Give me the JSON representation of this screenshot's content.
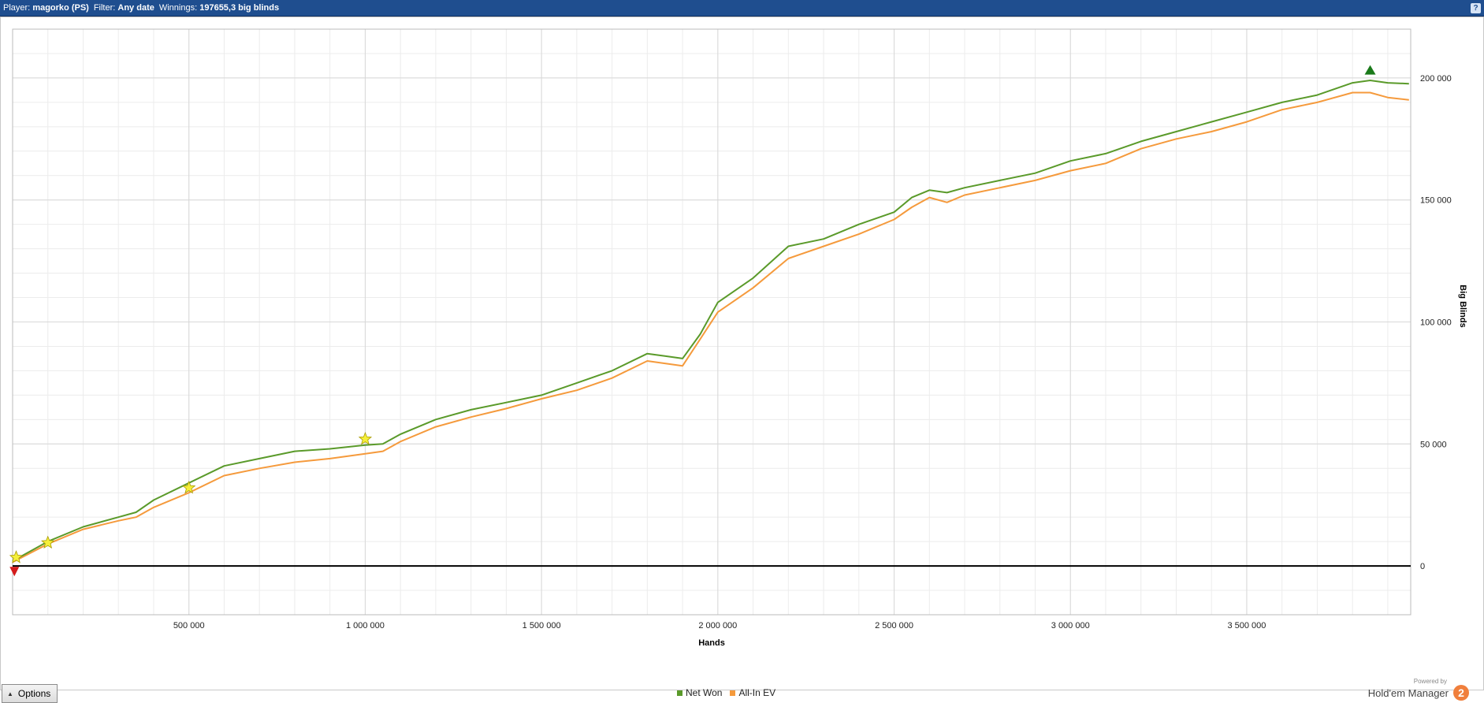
{
  "header": {
    "player_label": "Player:",
    "player_value": "magorko (PS)",
    "filter_label": "Filter:",
    "filter_value": "Any date",
    "winnings_label": "Winnings:",
    "winnings_value": "197655,3 big blinds",
    "help": "?"
  },
  "options_button": {
    "label": "Options",
    "icon": "triangle-up-icon"
  },
  "branding": {
    "powered": "Powered by",
    "name": "Hold'em Manager",
    "logo_text": "2"
  },
  "colors": {
    "net_won": "#5a9a2a",
    "allin_ev": "#f59a3c",
    "zero_line": "#000000",
    "grid": "#d8d8d8"
  },
  "chart_data": {
    "type": "line",
    "xlabel": "Hands",
    "ylabel": "Big Blinds",
    "xlim": [
      0,
      3965000
    ],
    "ylim": [
      -20000,
      220000
    ],
    "x_ticks": [
      500000,
      1000000,
      1500000,
      2000000,
      2500000,
      3000000,
      3500000
    ],
    "x_tick_labels": [
      "500 000",
      "1 000 000",
      "1 500 000",
      "2 000 000",
      "2 500 000",
      "3 000 000",
      "3 500 000"
    ],
    "y_ticks": [
      0,
      50000,
      100000,
      150000,
      200000
    ],
    "y_tick_labels": [
      "0",
      "50 000",
      "100 000",
      "150 000",
      "200 000"
    ],
    "grid": true,
    "legend_position": "bottom-center",
    "series": [
      {
        "name": "Net Won",
        "x": [
          0,
          100000,
          200000,
          300000,
          350000,
          400000,
          500000,
          600000,
          700000,
          800000,
          900000,
          1000000,
          1050000,
          1100000,
          1200000,
          1300000,
          1400000,
          1500000,
          1600000,
          1700000,
          1800000,
          1850000,
          1900000,
          1950000,
          2000000,
          2100000,
          2200000,
          2300000,
          2400000,
          2500000,
          2550000,
          2600000,
          2650000,
          2700000,
          2800000,
          2900000,
          3000000,
          3100000,
          3200000,
          3300000,
          3400000,
          3500000,
          3600000,
          3700000,
          3800000,
          3850000,
          3900000,
          3960000
        ],
        "values": [
          2000,
          10000,
          16000,
          20000,
          22000,
          27000,
          34000,
          41000,
          44000,
          47000,
          48000,
          49500,
          50000,
          54000,
          60000,
          64000,
          67000,
          70000,
          75000,
          80000,
          87000,
          86000,
          85000,
          95000,
          108000,
          118000,
          131000,
          134000,
          140000,
          145000,
          151000,
          154000,
          153000,
          155000,
          158000,
          161000,
          166000,
          169000,
          174000,
          178000,
          182000,
          186000,
          190000,
          193000,
          198000,
          199000,
          198000,
          197655
        ]
      },
      {
        "name": "All-In EV",
        "x": [
          0,
          100000,
          200000,
          300000,
          350000,
          400000,
          500000,
          600000,
          700000,
          800000,
          900000,
          1000000,
          1050000,
          1100000,
          1200000,
          1300000,
          1400000,
          1500000,
          1600000,
          1700000,
          1800000,
          1850000,
          1900000,
          1950000,
          2000000,
          2100000,
          2200000,
          2300000,
          2400000,
          2500000,
          2550000,
          2600000,
          2650000,
          2700000,
          2800000,
          2900000,
          3000000,
          3100000,
          3200000,
          3300000,
          3400000,
          3500000,
          3600000,
          3700000,
          3800000,
          3850000,
          3900000,
          3960000
        ],
        "values": [
          1500,
          9000,
          15000,
          18500,
          20000,
          24000,
          30000,
          37000,
          40000,
          42500,
          44000,
          46000,
          47000,
          51000,
          57000,
          61000,
          64500,
          68500,
          72000,
          77000,
          84000,
          83000,
          82000,
          93000,
          104000,
          114000,
          126000,
          131000,
          136000,
          142000,
          147000,
          151000,
          149000,
          152000,
          155000,
          158000,
          162000,
          165000,
          171000,
          175000,
          178000,
          182000,
          187000,
          190000,
          194000,
          194000,
          192000,
          191000
        ]
      }
    ],
    "markers": [
      {
        "shape": "star",
        "x": 10000,
        "y": 3500
      },
      {
        "shape": "star",
        "x": 100000,
        "y": 9500
      },
      {
        "shape": "star",
        "x": 500000,
        "y": 32000
      },
      {
        "shape": "star",
        "x": 1000000,
        "y": 52000
      },
      {
        "shape": "triangle-up",
        "x": 3850000,
        "y": 203000
      },
      {
        "shape": "triangle-down",
        "x": 5000,
        "y": -2000
      }
    ]
  }
}
